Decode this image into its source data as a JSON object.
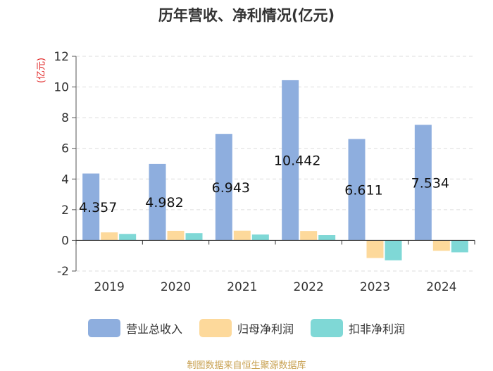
{
  "chart_data": {
    "type": "bar",
    "title": "历年营收、净利情况(亿元)",
    "ylabel": "(亿元)",
    "xlabel": "",
    "categories": [
      "2019",
      "2020",
      "2021",
      "2022",
      "2023",
      "2024"
    ],
    "ylim": [
      -2,
      12
    ],
    "yticks": [
      -2,
      0,
      2,
      4,
      6,
      8,
      10,
      12
    ],
    "grid": true,
    "legend_position": "bottom",
    "series": [
      {
        "name": "营业总收入",
        "color": "#8eaede",
        "values": [
          4.357,
          4.982,
          6.943,
          10.442,
          6.611,
          7.534
        ],
        "data_labels": [
          "4.357",
          "4.982",
          "6.943",
          "10.442",
          "6.611",
          "7.534"
        ]
      },
      {
        "name": "归母净利润",
        "color": "#fdd99b",
        "values": [
          0.52,
          0.62,
          0.63,
          0.61,
          -1.15,
          -0.68
        ]
      },
      {
        "name": "扣非净利润",
        "color": "#7fd8d6",
        "values": [
          0.42,
          0.47,
          0.38,
          0.34,
          -1.3,
          -0.78
        ]
      }
    ]
  },
  "source_text": "制图数据来自恒生聚源数据库"
}
